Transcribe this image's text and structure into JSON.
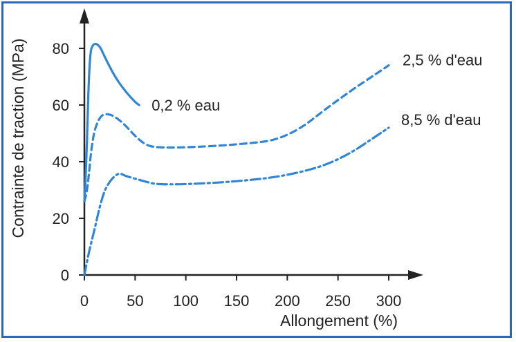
{
  "chart_data": {
    "type": "line",
    "title": "",
    "xlabel": "Allongement (%)",
    "ylabel": "Contrainte de traction (MPa)",
    "xlim": [
      0,
      300
    ],
    "ylim": [
      0,
      80
    ],
    "xticks": [
      "0",
      "50",
      "100",
      "150",
      "200",
      "250",
      "300"
    ],
    "yticks": [
      "0",
      "20",
      "40",
      "60",
      "80"
    ],
    "grid": false,
    "legend": "none",
    "series": [
      {
        "name": "0,2 % eau",
        "style": "solid",
        "color": "#2f86d6",
        "x": [
          0,
          2,
          5,
          9,
          15,
          20,
          30,
          40,
          50,
          54
        ],
        "y": [
          26,
          40,
          78,
          82,
          81,
          77,
          70,
          65,
          61,
          60
        ]
      },
      {
        "name": "2,5 % d'eau",
        "style": "dashed",
        "color": "#2f86d6",
        "x": [
          0,
          3,
          8,
          15,
          22,
          30,
          40,
          50,
          60,
          70,
          100,
          150,
          200,
          250,
          300
        ],
        "y": [
          26,
          30,
          49,
          56,
          57,
          56,
          53,
          49,
          46,
          45,
          45,
          46,
          48,
          62,
          74
        ]
      },
      {
        "name": "8,5 % d'eau",
        "style": "dash-dot",
        "color": "#2f86d6",
        "x": [
          0,
          5,
          10,
          15,
          20,
          25,
          30,
          35,
          40,
          50,
          60,
          70,
          100,
          150,
          200,
          250,
          300
        ],
        "y": [
          0,
          9,
          16,
          24,
          30,
          33,
          35,
          36,
          35,
          34,
          33,
          32,
          32,
          33,
          35,
          40,
          52
        ]
      }
    ]
  },
  "colors": {
    "frame": "#2a67b8",
    "axis": "#222222",
    "series": "#2f86d6"
  }
}
